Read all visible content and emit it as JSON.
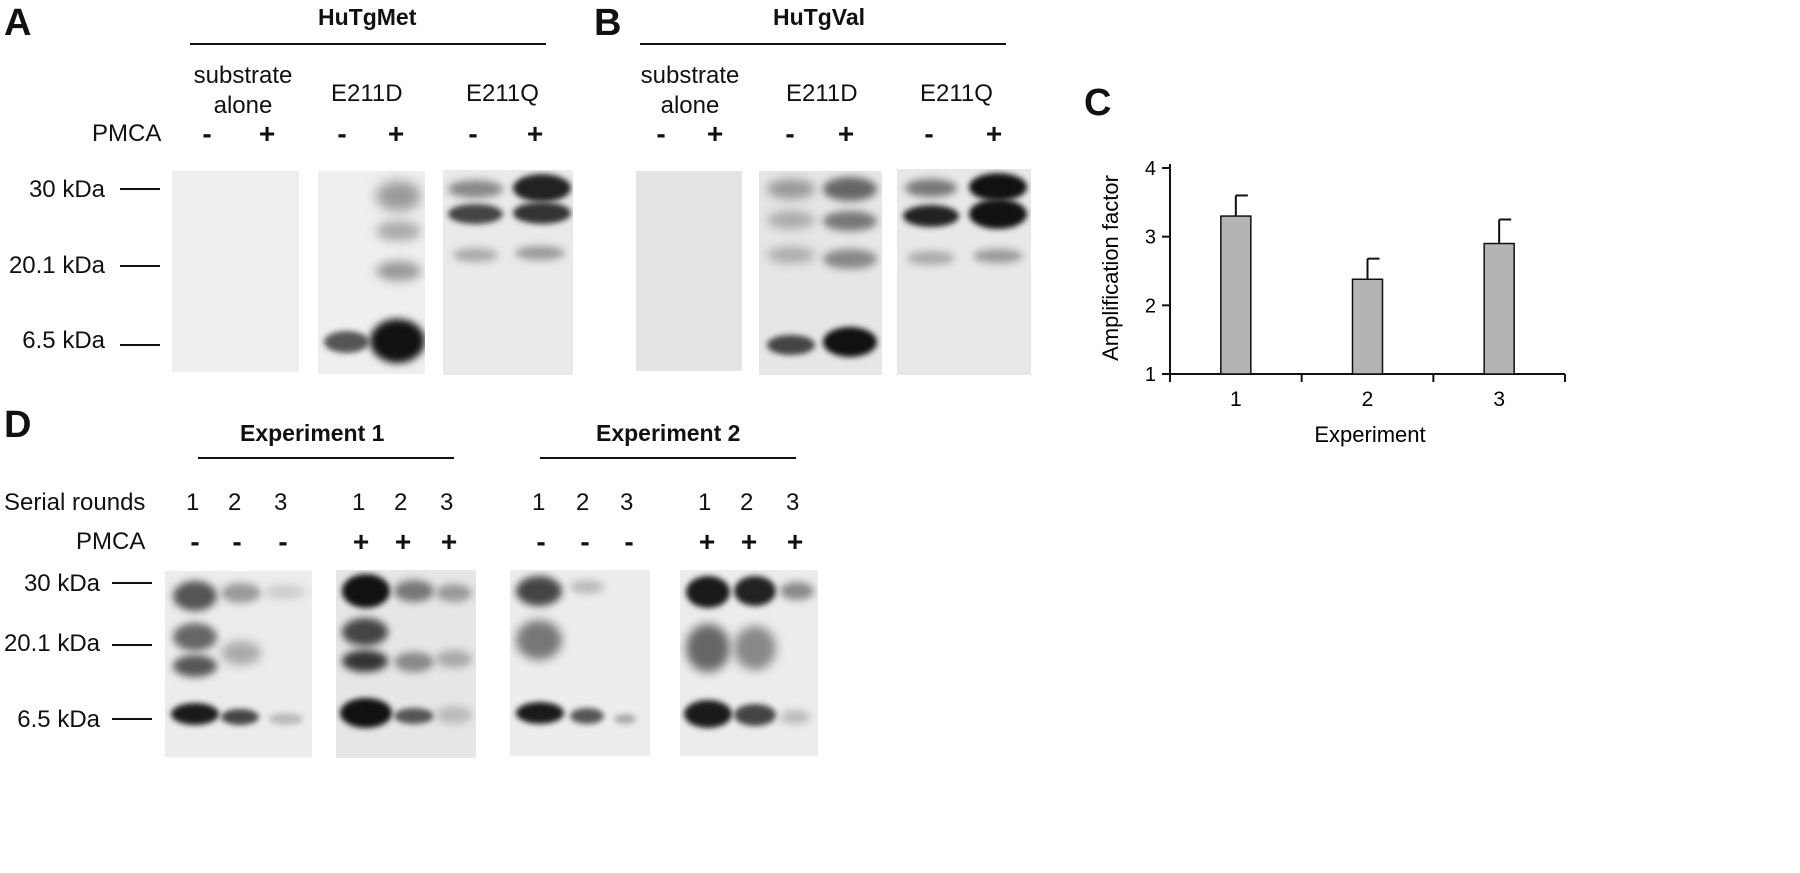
{
  "panel_a": {
    "letter": "A",
    "title": "HuTgMet",
    "groups": [
      "substrate\nalone",
      "E211D",
      "E211Q"
    ],
    "group_line1": "substrate",
    "group_line2": "alone",
    "col2": "E211D",
    "col3": "E211Q",
    "pmca_label": "PMCA",
    "signs": [
      "-",
      "+",
      "-",
      "+",
      "-",
      "+"
    ],
    "markers": [
      "30 kDa",
      "20.1 kDa",
      "6.5 kDa"
    ]
  },
  "panel_b": {
    "letter": "B",
    "title": "HuTgVal",
    "group_line1": "substrate",
    "group_line2": "alone",
    "col2": "E211D",
    "col3": "E211Q",
    "signs": [
      "-",
      "+",
      "-",
      "+",
      "-",
      "+"
    ]
  },
  "panel_c": {
    "letter": "C",
    "chart_data": {
      "type": "bar",
      "categories": [
        "1",
        "2",
        "3"
      ],
      "values": [
        3.3,
        2.38,
        2.9
      ],
      "errors": [
        0.3,
        0.3,
        0.35
      ],
      "xlabel": "Experiment",
      "ylabel": "Amplification factor",
      "ylim": [
        1,
        4
      ],
      "yticks": [
        "1",
        "2",
        "3",
        "4"
      ],
      "bar_color": "#b4b4b4"
    }
  },
  "panel_d": {
    "letter": "D",
    "exp1": "Experiment 1",
    "exp2": "Experiment 2",
    "serial_label": "Serial rounds",
    "pmca_label": "PMCA",
    "rounds": [
      "1",
      "2",
      "3",
      "1",
      "2",
      "3",
      "1",
      "2",
      "3",
      "1",
      "2",
      "3"
    ],
    "signs": [
      "-",
      "-",
      "-",
      "+",
      "+",
      "+",
      "-",
      "-",
      "-",
      "+",
      "+",
      "+"
    ],
    "markers": [
      "30 kDa",
      "20.1 kDa",
      "6.5 kDa"
    ]
  }
}
